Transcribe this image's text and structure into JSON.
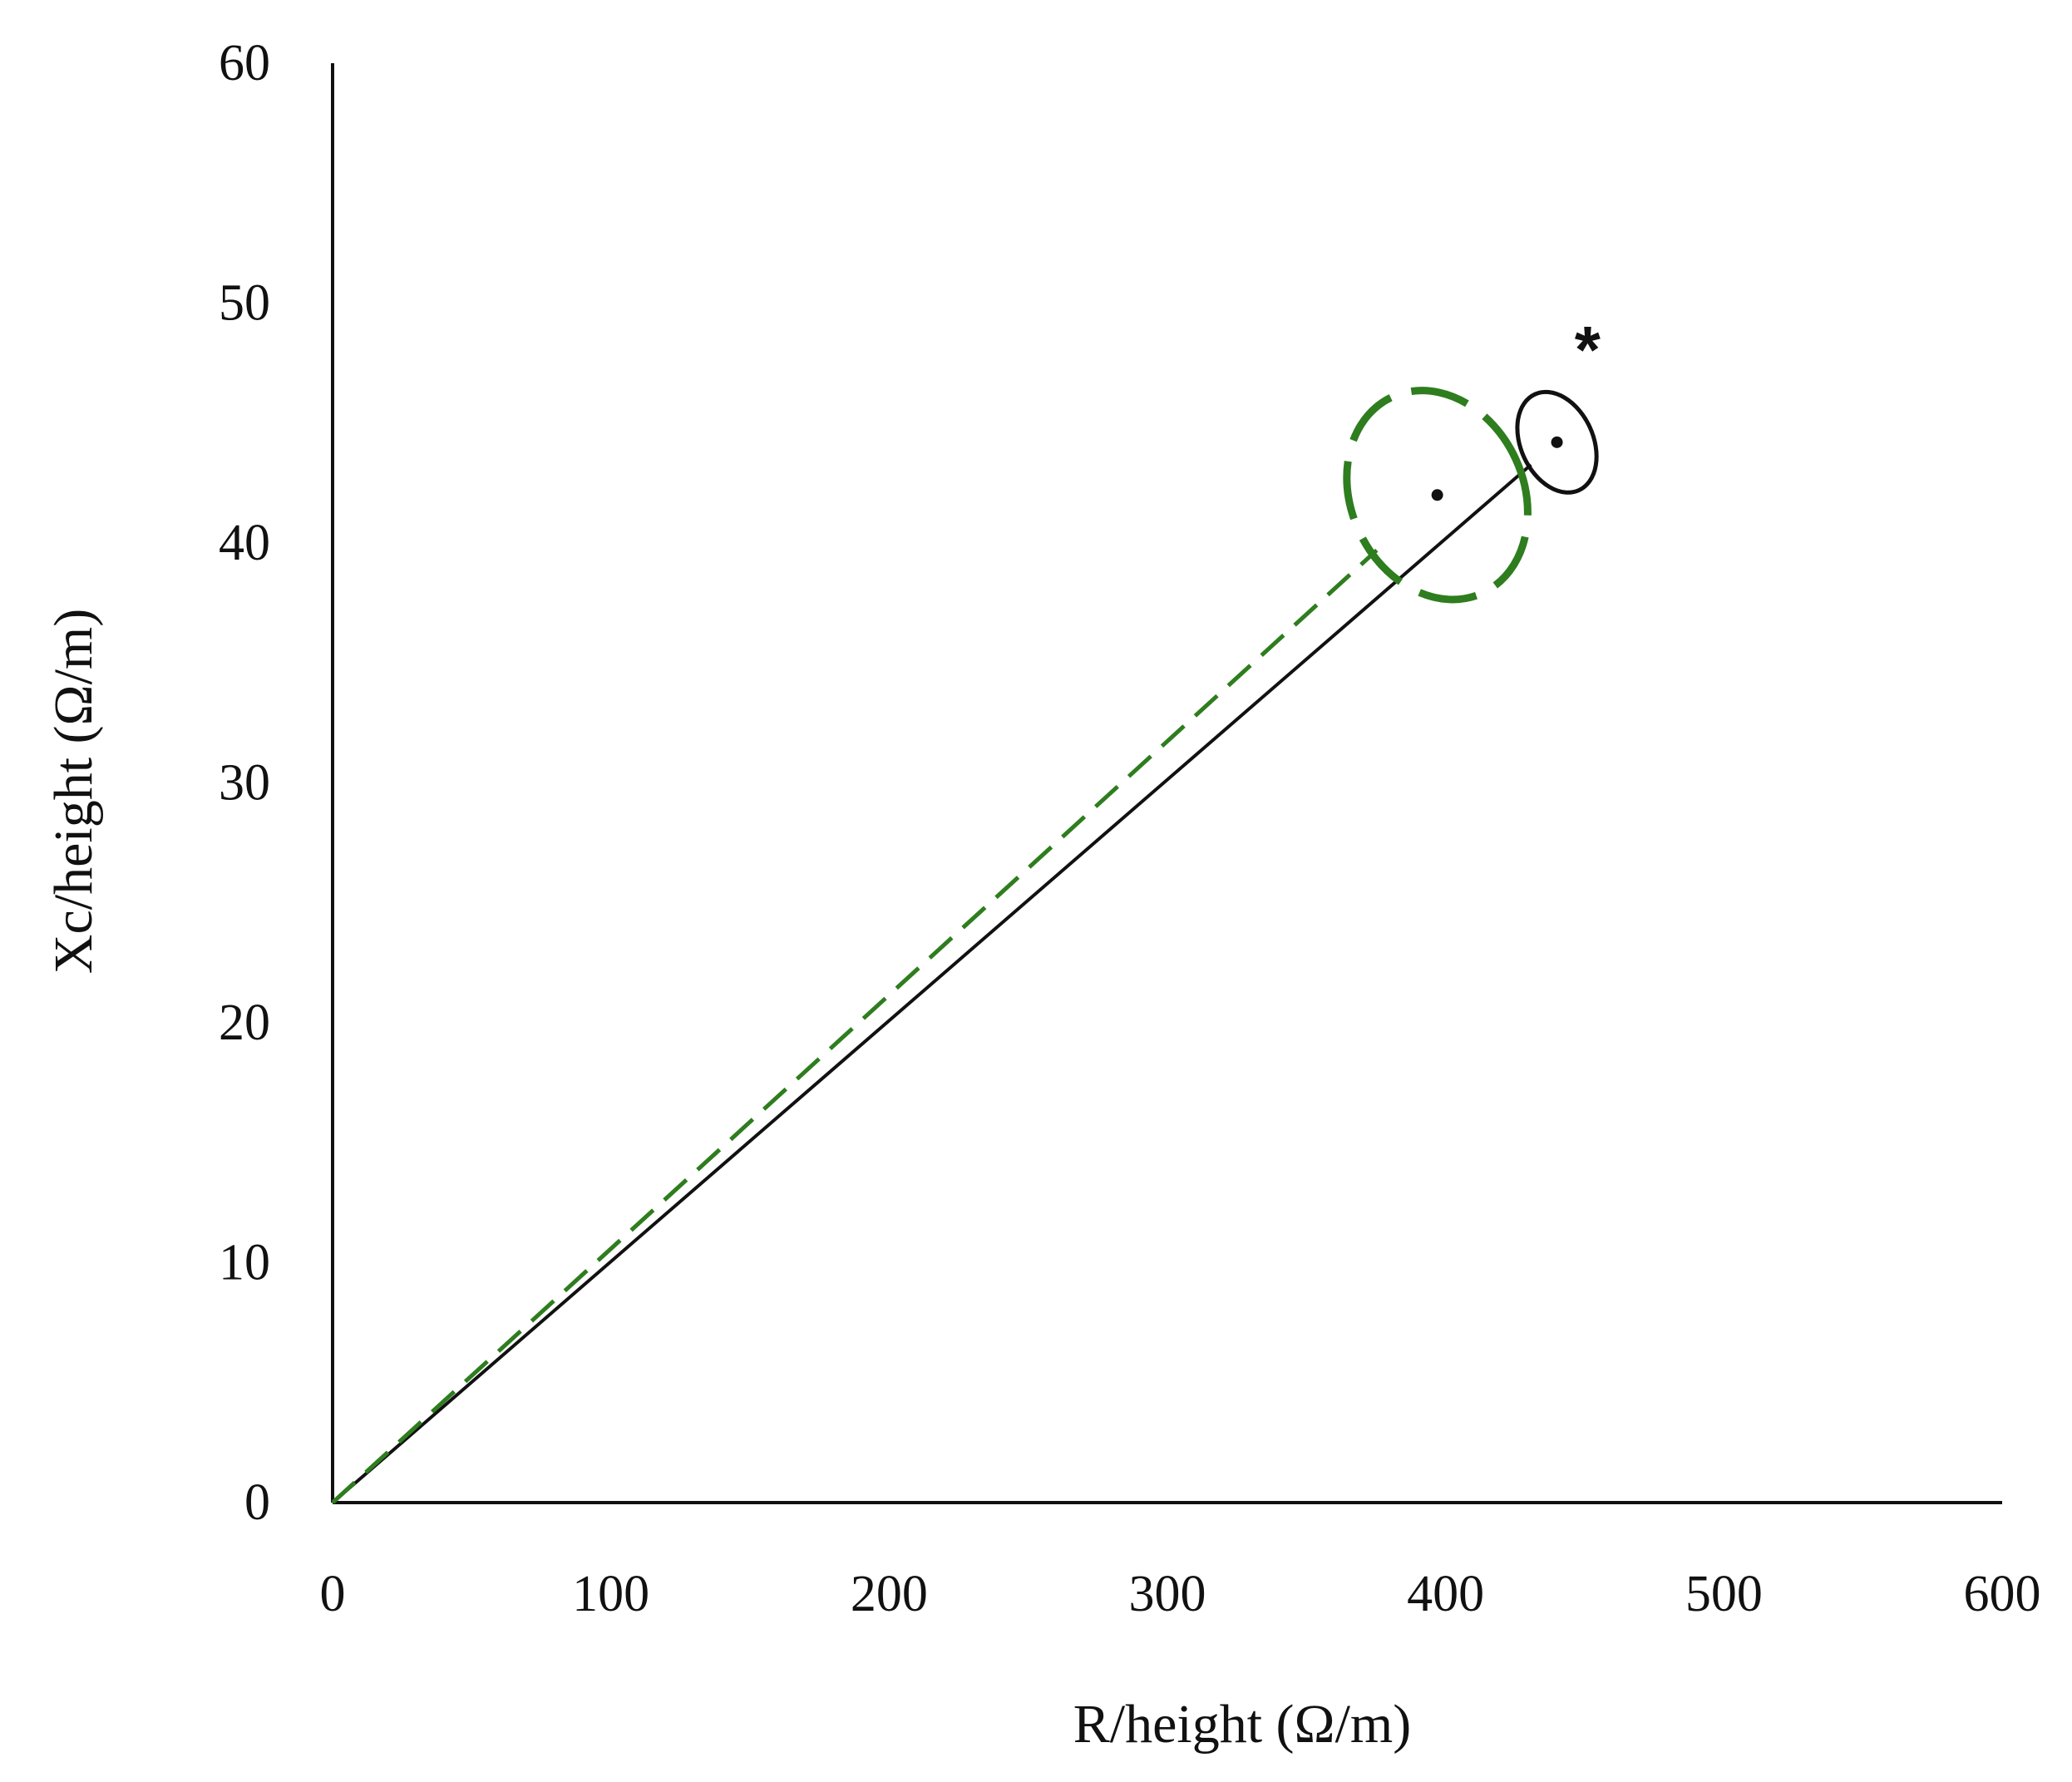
{
  "chart_data": {
    "type": "scatter",
    "xlabel": "R/height (Ω/m)",
    "ylabel": "Xc/height (Ω/m)",
    "xlim": [
      0,
      600
    ],
    "ylim": [
      0,
      60
    ],
    "xticks": [
      "0",
      "100",
      "200",
      "300",
      "400",
      "500",
      "600"
    ],
    "yticks": [
      "0",
      "10",
      "20",
      "30",
      "40",
      "50",
      "60"
    ],
    "grid": false,
    "legend": "none",
    "series": [
      {
        "style": "solid",
        "color": "#111111",
        "mean": {
          "x": 440,
          "y": 44.2
        },
        "ellipse": {
          "rx": 13,
          "ry": 2.2,
          "angle_deg": 5.5
        }
      },
      {
        "style": "dashed",
        "color": "#2e7d1e",
        "mean": {
          "x": 397,
          "y": 42.0
        },
        "ellipse": {
          "rx": 31,
          "ry": 4.5,
          "angle_deg": 5.5
        }
      }
    ],
    "annotations": [
      {
        "text": "*",
        "x": 451,
        "y": 48.5
      }
    ]
  }
}
